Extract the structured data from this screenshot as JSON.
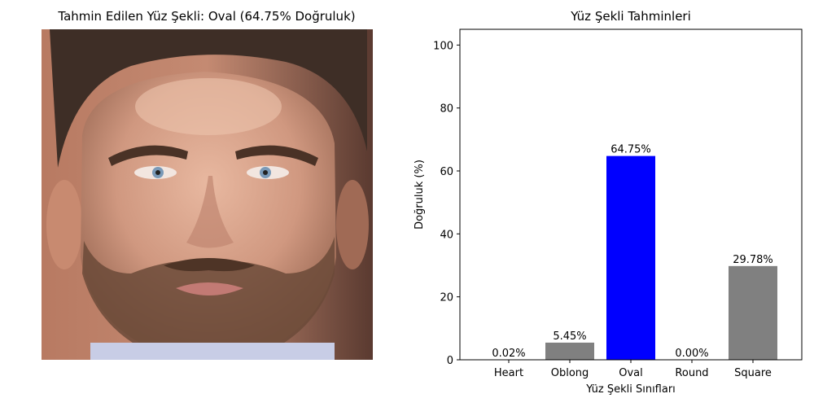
{
  "left_panel": {
    "title": "Tahmin Edilen Yüz Şekli: Oval (64.75% Doğruluk)"
  },
  "chart_data": {
    "type": "bar",
    "title": "Yüz Şekli Tahminleri",
    "xlabel": "Yüz Şekli Sınıfları",
    "ylabel": "Doğruluk (%)",
    "categories": [
      "Heart",
      "Oblong",
      "Oval",
      "Round",
      "Square"
    ],
    "values": [
      0.02,
      5.45,
      64.75,
      0.0,
      29.78
    ],
    "value_labels": [
      "0.02%",
      "5.45%",
      "64.75%",
      "0.00%",
      "29.78%"
    ],
    "colors": [
      "#808080",
      "#808080",
      "#0000ff",
      "#808080",
      "#808080"
    ],
    "ylim": [
      0,
      105
    ],
    "yticks": [
      0,
      20,
      40,
      60,
      80,
      100
    ],
    "grid": false
  }
}
